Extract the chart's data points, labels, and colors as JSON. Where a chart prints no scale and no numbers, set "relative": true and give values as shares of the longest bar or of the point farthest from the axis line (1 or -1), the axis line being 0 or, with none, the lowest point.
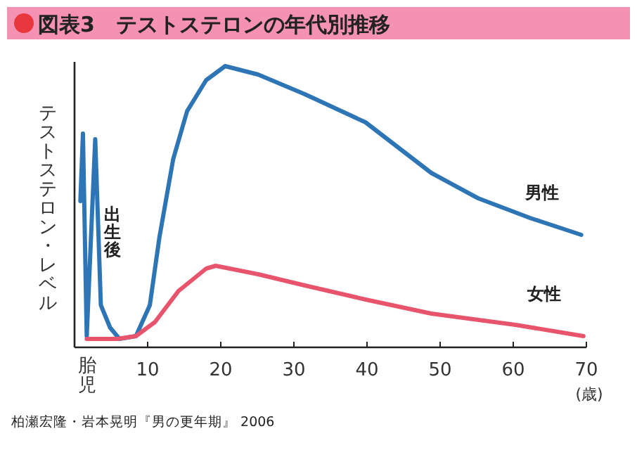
{
  "chart_data": {
    "type": "line",
    "title": "図表3　テストステロンの年代別推移",
    "xlabel": "(歳)",
    "ylabel": "テストステロン・レベル",
    "relative": true,
    "xlim": [
      0,
      70
    ],
    "xticks": [
      {
        "value": 1.3,
        "label": "胎児"
      },
      10,
      20,
      30,
      40,
      50,
      60,
      70
    ],
    "series": [
      {
        "name": "男性",
        "color": "#2e75b6",
        "x": [
          0.8,
          1.15,
          1.67,
          2.83,
          3.6,
          4.87,
          6.15,
          8.4,
          10.3,
          11.6,
          13.5,
          15.4,
          18.0,
          20.6,
          25.1,
          31.5,
          39.8,
          48.8,
          55.2,
          62.3,
          69.3
        ],
        "values": [
          0.52,
          0.76,
          0.04,
          0.74,
          0.15,
          0.07,
          0.03,
          0.04,
          0.15,
          0.39,
          0.67,
          0.84,
          0.95,
          1.0,
          0.97,
          0.9,
          0.8,
          0.62,
          0.53,
          0.46,
          0.4
        ]
      },
      {
        "name": "女性",
        "color": "#e8546b",
        "x": [
          1.67,
          5.83,
          8.4,
          11.0,
          14.2,
          18.0,
          19.3,
          25.1,
          31.5,
          39.8,
          48.8,
          60.3,
          69.6
        ],
        "values": [
          0.03,
          0.03,
          0.04,
          0.09,
          0.2,
          0.28,
          0.29,
          0.26,
          0.22,
          0.17,
          0.12,
          0.08,
          0.04
        ]
      }
    ],
    "annotations": [
      "出生後",
      "柏瀬宏隆・岩本晃明『男の更年期』 2006"
    ],
    "marker": "none",
    "line_style": "solid"
  }
}
